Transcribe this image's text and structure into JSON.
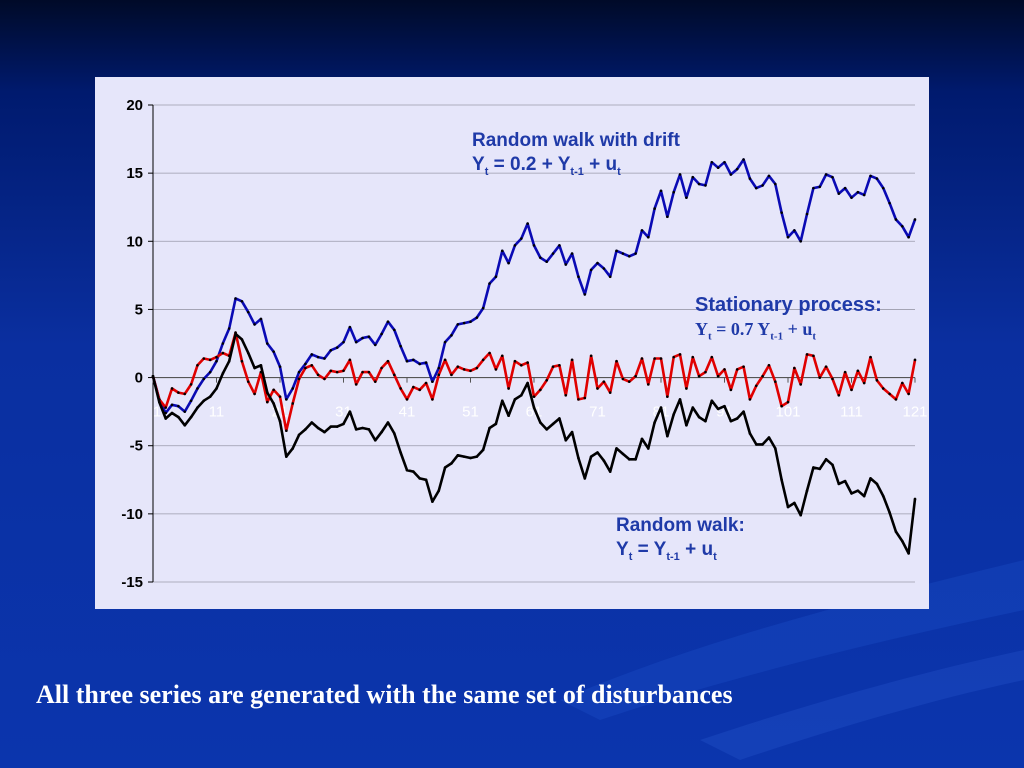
{
  "caption": "All three series are  generated with the same set  of disturbances",
  "annotations": {
    "drift_title": "Random walk with drift",
    "drift_eq": {
      "a": "Y",
      "a_sub": "t",
      "b": " = 0.2 + Y",
      "b_sub": "t-1",
      "c": " + u",
      "c_sub": "t"
    },
    "stationary_title": "Stationary process:",
    "stationary_eq": {
      "a": "Y",
      "a_sub": "t",
      "b": " = 0.7 Y",
      "b_sub": "t-1",
      "c": " + u",
      "c_sub": "t"
    },
    "rw_title": "Random walk:",
    "rw_eq": {
      "a": "Y",
      "a_sub": "t",
      "b": " = Y",
      "b_sub": "t-1",
      "c": " + u",
      "c_sub": "t"
    }
  },
  "colors": {
    "drift": "#0a0ab4",
    "stationary": "#e00000",
    "random_walk": "#000000",
    "panel": "#e6e6fa",
    "annotation": "#1f3aa8"
  },
  "chart_data": {
    "type": "line",
    "ylim": [
      -15,
      20
    ],
    "yticks": [
      20,
      15,
      10,
      5,
      0,
      -5,
      -10,
      -15
    ],
    "xlim": [
      1,
      121
    ],
    "xticks": [
      1,
      11,
      21,
      31,
      41,
      51,
      61,
      71,
      81,
      91,
      101,
      111,
      121
    ],
    "grid": true,
    "series": [
      {
        "key": "drift",
        "x": [
          1,
          2,
          3,
          4,
          5,
          6,
          7,
          8,
          9,
          10,
          11,
          12,
          13,
          14,
          15,
          16,
          17,
          18,
          19,
          20,
          21,
          22,
          23,
          24,
          25,
          26,
          27,
          28,
          29,
          30,
          31,
          32,
          33,
          34,
          35,
          36,
          37,
          38,
          39,
          40,
          41,
          42,
          43,
          44,
          45,
          46,
          47,
          48,
          49,
          50,
          51,
          52,
          53,
          54,
          55,
          56,
          57,
          58,
          59,
          60,
          61,
          62,
          63,
          64,
          65,
          66,
          67,
          68,
          69,
          70,
          71,
          72,
          73,
          74,
          75,
          76,
          77,
          78,
          79,
          80,
          81,
          82,
          83,
          84,
          85,
          86,
          87,
          88,
          89,
          90,
          91,
          92,
          93,
          94,
          95,
          96,
          97,
          98,
          99,
          100,
          101,
          102,
          103,
          104,
          105,
          106,
          107,
          108,
          109,
          110,
          111,
          112,
          113,
          114,
          115,
          116,
          117,
          118,
          119,
          120,
          121
        ],
        "y": [
          0.1,
          -1.6,
          -2.6,
          -2.0,
          -2.1,
          -2.5,
          -1.7,
          -0.8,
          -0.1,
          0.4,
          1.2,
          2.5,
          3.6,
          5.8,
          5.6,
          4.8,
          3.9,
          4.3,
          2.5,
          1.9,
          0.8,
          -1.6,
          -0.8,
          0.4,
          1.0,
          1.7,
          1.5,
          1.4,
          2.0,
          2.2,
          2.6,
          3.7,
          2.6,
          2.9,
          3.0,
          2.4,
          3.2,
          4.1,
          3.5,
          2.3,
          1.2,
          1.3,
          1.0,
          1.1,
          -0.3,
          0.7,
          2.6,
          3.1,
          3.9,
          4.0,
          4.1,
          4.4,
          5.1,
          6.9,
          7.4,
          9.3,
          8.4,
          9.7,
          10.2,
          11.3,
          9.7,
          8.8,
          8.5,
          9.1,
          9.7,
          8.3,
          9.1,
          7.4,
          6.1,
          7.9,
          8.4,
          8.0,
          7.4,
          9.3,
          9.1,
          8.9,
          9.1,
          10.8,
          10.3,
          12.4,
          13.7,
          11.8,
          13.6,
          14.9,
          13.2,
          14.7,
          14.2,
          14.1,
          15.8,
          15.4,
          15.8,
          14.9,
          15.3,
          16.0,
          14.6,
          13.9,
          14.1,
          14.8,
          14.2,
          12.1,
          10.3,
          10.8,
          10.0,
          12.0,
          13.9,
          14.0,
          14.9,
          14.7,
          13.5,
          13.9,
          13.2,
          13.6,
          13.4,
          14.8,
          14.6,
          13.9,
          12.8,
          11.6,
          11.1,
          10.3,
          11.6
        ]
      },
      {
        "key": "stationary",
        "x": [
          1,
          2,
          3,
          4,
          5,
          6,
          7,
          8,
          9,
          10,
          11,
          12,
          13,
          14,
          15,
          16,
          17,
          18,
          19,
          20,
          21,
          22,
          23,
          24,
          25,
          26,
          27,
          28,
          29,
          30,
          31,
          32,
          33,
          34,
          35,
          36,
          37,
          38,
          39,
          40,
          41,
          42,
          43,
          44,
          45,
          46,
          47,
          48,
          49,
          50,
          51,
          52,
          53,
          54,
          55,
          56,
          57,
          58,
          59,
          60,
          61,
          62,
          63,
          64,
          65,
          66,
          67,
          68,
          69,
          70,
          71,
          72,
          73,
          74,
          75,
          76,
          77,
          78,
          79,
          80,
          81,
          82,
          83,
          84,
          85,
          86,
          87,
          88,
          89,
          90,
          91,
          92,
          93,
          94,
          95,
          96,
          97,
          98,
          99,
          100,
          101,
          102,
          103,
          104,
          105,
          106,
          107,
          108,
          109,
          110,
          111,
          112,
          113,
          114,
          115,
          116,
          117,
          118,
          119,
          120,
          121
        ],
        "y": [
          0.1,
          -1.6,
          -2.2,
          -0.8,
          -1.1,
          -1.2,
          -0.5,
          0.9,
          1.4,
          1.3,
          1.5,
          1.8,
          1.6,
          3.3,
          1.2,
          -0.3,
          -1.2,
          0.4,
          -1.8,
          -0.9,
          -1.4,
          -3.9,
          -1.9,
          -0.1,
          0.7,
          0.9,
          0.2,
          -0.1,
          0.5,
          0.4,
          0.5,
          1.3,
          -0.5,
          0.4,
          0.4,
          -0.3,
          0.7,
          1.2,
          0.2,
          -0.8,
          -1.6,
          -0.7,
          -0.9,
          -0.4,
          -1.6,
          0.2,
          1.3,
          0.2,
          0.8,
          0.6,
          0.5,
          0.7,
          1.3,
          1.8,
          0.6,
          1.6,
          -0.8,
          1.2,
          0.9,
          1.1,
          -1.4,
          -0.9,
          -0.2,
          0.8,
          0.9,
          -1.3,
          1.3,
          -1.6,
          -1.5,
          1.6,
          -0.8,
          -0.3,
          -1.1,
          1.2,
          -0.1,
          -0.3,
          0.1,
          1.4,
          -0.5,
          1.4,
          1.4,
          -1.4,
          1.5,
          1.7,
          -0.8,
          1.5,
          0.1,
          0.4,
          1.5,
          0.1,
          0.6,
          -0.9,
          0.6,
          0.8,
          -1.6,
          -0.6,
          0.1,
          0.9,
          -0.3,
          -2.1,
          -1.8,
          0.7,
          -0.5,
          1.7,
          1.6,
          0.0,
          0.8,
          -0.1,
          -1.3,
          0.4,
          -0.9,
          0.5,
          -0.4,
          1.5,
          -0.2,
          -0.8,
          -1.2,
          -1.6,
          -0.4,
          -1.2,
          1.3
        ]
      },
      {
        "key": "random_walk",
        "x": [
          1,
          2,
          3,
          4,
          5,
          6,
          7,
          8,
          9,
          10,
          11,
          12,
          13,
          14,
          15,
          16,
          17,
          18,
          19,
          20,
          21,
          22,
          23,
          24,
          25,
          26,
          27,
          28,
          29,
          30,
          31,
          32,
          33,
          34,
          35,
          36,
          37,
          38,
          39,
          40,
          41,
          42,
          43,
          44,
          45,
          46,
          47,
          48,
          49,
          50,
          51,
          52,
          53,
          54,
          55,
          56,
          57,
          58,
          59,
          60,
          61,
          62,
          63,
          64,
          65,
          66,
          67,
          68,
          69,
          70,
          71,
          72,
          73,
          74,
          75,
          76,
          77,
          78,
          79,
          80,
          81,
          82,
          83,
          84,
          85,
          86,
          87,
          88,
          89,
          90,
          91,
          92,
          93,
          94,
          95,
          96,
          97,
          98,
          99,
          100,
          101,
          102,
          103,
          104,
          105,
          106,
          107,
          108,
          109,
          110,
          111,
          112,
          113,
          114,
          115,
          116,
          117,
          118,
          119,
          120,
          121
        ],
        "y": [
          0.1,
          -1.8,
          -3.0,
          -2.6,
          -2.9,
          -3.5,
          -2.9,
          -2.2,
          -1.7,
          -1.4,
          -0.8,
          0.3,
          1.2,
          3.2,
          2.8,
          1.8,
          0.7,
          0.9,
          -1.1,
          -1.9,
          -3.2,
          -5.8,
          -5.2,
          -4.2,
          -3.8,
          -3.3,
          -3.7,
          -4.0,
          -3.6,
          -3.6,
          -3.4,
          -2.5,
          -3.8,
          -3.7,
          -3.8,
          -4.6,
          -4.0,
          -3.3,
          -4.1,
          -5.5,
          -6.8,
          -6.9,
          -7.4,
          -7.5,
          -9.1,
          -8.3,
          -6.6,
          -6.3,
          -5.7,
          -5.8,
          -5.9,
          -5.8,
          -5.3,
          -3.7,
          -3.4,
          -1.7,
          -2.8,
          -1.6,
          -1.3,
          -0.4,
          -2.2,
          -3.3,
          -3.8,
          -3.4,
          -3.0,
          -4.6,
          -4.0,
          -5.9,
          -7.4,
          -5.8,
          -5.5,
          -6.1,
          -6.9,
          -5.2,
          -5.6,
          -6.0,
          -6.0,
          -4.5,
          -5.2,
          -3.3,
          -2.2,
          -4.3,
          -2.7,
          -1.6,
          -3.5,
          -2.2,
          -2.9,
          -3.2,
          -1.7,
          -2.3,
          -2.1,
          -3.2,
          -3.0,
          -2.5,
          -4.1,
          -4.9,
          -4.9,
          -4.4,
          -5.2,
          -7.5,
          -9.5,
          -9.2,
          -10.1,
          -8.3,
          -6.6,
          -6.7,
          -6.0,
          -6.4,
          -7.8,
          -7.6,
          -8.5,
          -8.3,
          -8.7,
          -7.4,
          -7.8,
          -8.7,
          -9.9,
          -11.3,
          -12.0,
          -12.9,
          -8.9
        ]
      }
    ]
  }
}
